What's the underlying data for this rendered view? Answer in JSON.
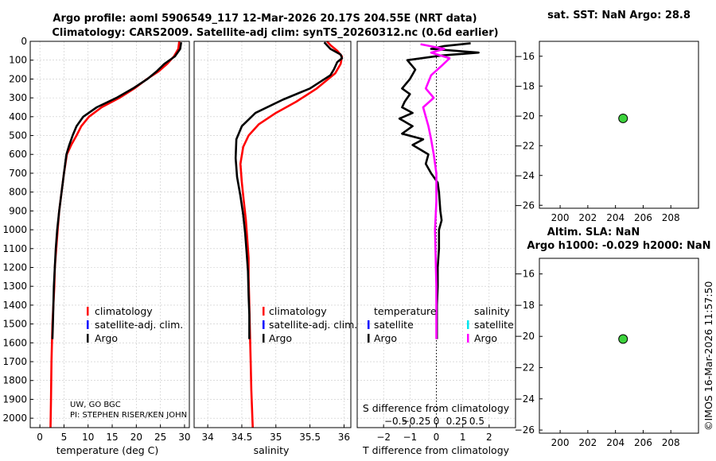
{
  "header": {
    "title_line1": "Argo profile: aoml 5906549_117 12-Mar-2026 20.17S 204.55E (NRT data)",
    "title_line2": "Climatology: CARS2009. Satellite-adj clim: synTS_20260312.nc (0.6d earlier)"
  },
  "legend": {
    "climatology": "climatology",
    "satellite_adj": "satellite-adj. clim.",
    "argo": "Argo",
    "temperature": "temperature",
    "salinity": "salinity",
    "satellite": "satellite",
    "colors": {
      "climatology": "#ff0000",
      "satellite_adj": "#0000ff",
      "argo": "#000000",
      "salinity_argo": "#ff00ff",
      "salinity_satellite": "#00e5ee"
    }
  },
  "annotations": {
    "institution": "UW, GO BGC",
    "pi": "PI: STEPHEN RISER/KEN JOHN",
    "footer_credit": "©IMOS 16-Mar-2026 11:57:50"
  },
  "sst_panel": {
    "title": "sat. SST: NaN Argo: 28.8"
  },
  "sla_panel": {
    "title_line1": "Altim. SLA: NaN",
    "title_line2": "Argo h1000: -0.029 h2000: NaN"
  },
  "marker_color": "#3cd23c",
  "chart_data": [
    {
      "type": "line",
      "name": "temperature",
      "xlabel": "temperature (deg C)",
      "xlim": [
        -2,
        31
      ],
      "ylim": [
        2050,
        0
      ],
      "xticks": [
        0,
        5,
        10,
        15,
        20,
        25,
        30
      ],
      "yticks": [
        0,
        100,
        200,
        300,
        400,
        500,
        600,
        700,
        800,
        900,
        1000,
        1100,
        1200,
        1300,
        1400,
        1500,
        1600,
        1700,
        1800,
        1900,
        2000
      ],
      "series": [
        {
          "name": "climatology",
          "color": "#ff0000",
          "x": [
            28.9,
            28.7,
            27.8,
            26.4,
            24.6,
            22.2,
            19.6,
            16.5,
            12.8,
            10.2,
            8.6,
            7.6,
            6.5,
            5.6,
            5.0,
            4.5,
            4.0,
            3.7,
            3.4,
            3.1,
            3.0,
            2.8,
            2.6,
            2.4,
            2.3,
            2.2
          ],
          "y": [
            0,
            40,
            80,
            120,
            160,
            200,
            250,
            300,
            350,
            400,
            450,
            500,
            550,
            600,
            700,
            800,
            900,
            1000,
            1100,
            1200,
            1300,
            1400,
            1500,
            1700,
            1900,
            2050
          ]
        },
        {
          "name": "Argo",
          "color": "#000000",
          "x": [
            29.3,
            29.1,
            28.0,
            25.8,
            24.2,
            22.3,
            19.3,
            15.9,
            11.8,
            9.0,
            7.6,
            6.8,
            6.1,
            5.5,
            5.0,
            4.5,
            4.0,
            3.6,
            3.3,
            3.1,
            2.9,
            2.8,
            2.7,
            2.6
          ],
          "y": [
            5,
            40,
            80,
            120,
            160,
            200,
            250,
            300,
            350,
            400,
            450,
            500,
            550,
            600,
            700,
            800,
            900,
            1000,
            1100,
            1200,
            1300,
            1400,
            1500,
            1580
          ]
        }
      ]
    },
    {
      "type": "line",
      "name": "salinity",
      "xlabel": "salinity",
      "xlim": [
        33.8,
        36.1
      ],
      "ylim": [
        2050,
        0
      ],
      "xticks": [
        34,
        34.5,
        35,
        35.5,
        36
      ],
      "series": [
        {
          "name": "climatology",
          "color": "#ff0000",
          "x": [
            35.75,
            35.8,
            35.9,
            35.97,
            35.95,
            35.87,
            35.6,
            35.3,
            35.0,
            34.75,
            34.6,
            34.52,
            34.48,
            34.5,
            34.53,
            34.56,
            34.58,
            34.6,
            34.6,
            34.61,
            34.62,
            34.63,
            34.64,
            34.65,
            34.66
          ],
          "y": [
            0,
            20,
            50,
            80,
            120,
            170,
            250,
            320,
            380,
            440,
            500,
            560,
            650,
            750,
            850,
            950,
            1050,
            1150,
            1250,
            1400,
            1550,
            1700,
            1850,
            1950,
            2050
          ]
        },
        {
          "name": "Argo",
          "color": "#000000",
          "x": [
            35.71,
            35.8,
            35.95,
            35.97,
            35.9,
            35.85,
            35.8,
            35.5,
            35.1,
            34.7,
            34.5,
            34.42,
            34.41,
            34.43,
            34.48,
            34.52,
            34.55,
            34.57,
            34.59,
            34.6,
            34.61,
            34.61
          ],
          "y": [
            5,
            40,
            70,
            90,
            110,
            150,
            180,
            250,
            310,
            380,
            450,
            520,
            620,
            720,
            820,
            920,
            1020,
            1120,
            1220,
            1350,
            1450,
            1580
          ]
        }
      ]
    },
    {
      "type": "line",
      "name": "difference",
      "xlabel": "T difference from climatology",
      "x2label": "S difference from climatology",
      "xlim": [
        -3,
        3
      ],
      "ylim": [
        2050,
        0
      ],
      "xticks": [
        -2,
        -1,
        0,
        1,
        2
      ],
      "x2ticks": [
        -0.5,
        -0.25,
        0,
        0.25,
        0.5
      ],
      "series": [
        {
          "name": "temperature Argo",
          "color": "#000000",
          "x": [
            1.3,
            0.3,
            -0.2,
            1.6,
            0.2,
            -1.1,
            -0.8,
            -1.0,
            -1.3,
            -1.0,
            -1.2,
            -1.3,
            -0.9,
            -1.4,
            -0.9,
            -1.3,
            -0.5,
            -0.9,
            -0.3,
            -0.4,
            -0.2,
            0.05,
            0.1,
            0.15,
            0.2,
            0.1,
            0.1,
            0.05,
            0.05,
            0.02,
            0.02
          ],
          "y": [
            10,
            25,
            40,
            60,
            75,
            100,
            150,
            200,
            250,
            280,
            320,
            350,
            380,
            410,
            450,
            490,
            520,
            550,
            600,
            650,
            700,
            750,
            800,
            900,
            950,
            1000,
            1100,
            1200,
            1300,
            1400,
            1580
          ]
        },
        {
          "name": "salinity Argo",
          "color": "#ff00ff",
          "x": [
            -0.6,
            0.3,
            -0.2,
            0.5,
            0.2,
            -0.2,
            -0.4,
            -0.1,
            -0.5,
            -0.4,
            -0.3,
            -0.2,
            -0.1,
            0.0,
            0.0,
            -0.05,
            0.0,
            0.0
          ],
          "y": [
            15,
            40,
            60,
            90,
            130,
            180,
            250,
            300,
            350,
            400,
            450,
            520,
            600,
            700,
            850,
            1000,
            1300,
            1580
          ]
        }
      ]
    },
    {
      "type": "scatter",
      "name": "sst_map",
      "xlim": [
        198.5,
        210
      ],
      "ylim": [
        -26.2,
        -15
      ],
      "xticks": [
        200,
        202,
        204,
        206,
        208
      ],
      "yticks": [
        -16,
        -18,
        -20,
        -22,
        -24,
        -26
      ],
      "points": [
        {
          "x": 204.55,
          "y": -20.17
        }
      ]
    },
    {
      "type": "scatter",
      "name": "sla_map",
      "xlim": [
        198.5,
        210
      ],
      "ylim": [
        -26.2,
        -15
      ],
      "xticks": [
        200,
        202,
        204,
        206,
        208
      ],
      "yticks": [
        -16,
        -18,
        -20,
        -22,
        -24,
        -26
      ],
      "points": [
        {
          "x": 204.55,
          "y": -20.17
        }
      ]
    }
  ]
}
